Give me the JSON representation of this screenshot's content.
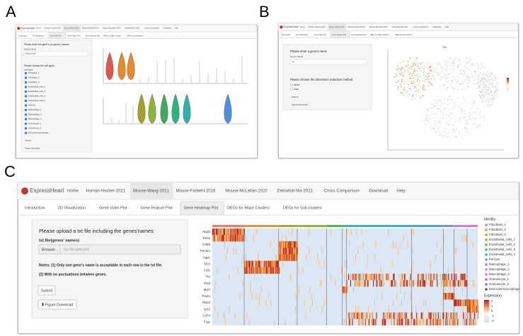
{
  "panel_labels": [
    "A",
    "B",
    "C"
  ],
  "app": {
    "brand": "ExpressHeart",
    "nav": [
      "Home",
      "Human-Hocker-2021",
      "Mouse-Wang-2021",
      "Mouse-Farbehi-2019",
      "Mouse-McLellan-2020",
      "Zebrafish-Ma-2021",
      "Cross Comparison",
      "Download",
      "Help"
    ],
    "tabs": [
      "Introduction",
      "2D Visualization",
      "Gene Violin Plot",
      "Gene Feature Plot",
      "Gene Heatmap Plot",
      "DEGs for Major Clusters",
      "DEGs for Sub-clusters"
    ]
  },
  "panel_a": {
    "prompt": "Please enter the gene's (or genes') names",
    "field_label": "Gene's Name",
    "field_value": "Nppa,Acta2",
    "cells_prompt": "Please choose the cell types",
    "cells_label": "Cell types",
    "submit": "Submit",
    "download": "Figure Download"
  },
  "panel_b": {
    "prompt": "Please enter a gene's name",
    "field_label": "Gene's Name",
    "field_value": "Ttn",
    "method_prompt": "Please choose the dimension reduction method",
    "methods": [
      "UMAP",
      "tSNE"
    ],
    "submit": "Submit",
    "download": "Figure Download",
    "plot_title": "Ttn"
  },
  "panel_c": {
    "form_title": "Please upload a txt file including the genes'names:",
    "file_label": "txt file(genes' names)",
    "browse": "Browse...",
    "no_file": "No file selected",
    "notes": [
      "Notes: (1) Only one gene's name is acceptable in each row in the txt file.",
      "(2) With no puctuations between genes."
    ],
    "submit": "Submit",
    "download": "Figure Download",
    "genes": [
      "Nppb",
      "Ensa",
      "Cd36",
      "Pecam",
      "Aqp1",
      "Dcn",
      "Col1",
      "Ttn",
      "Pisd",
      "Myl7",
      "Postn",
      "Rbp2",
      "Lyz2",
      "Cd74",
      "Fcgr"
    ],
    "legend_title": "Identity",
    "identities": [
      "Fibroblast_1",
      "Fibroblast_2",
      "Fibroblast_3",
      "Endothelial_cells_1",
      "Endothelial_cells_2",
      "Endothelial_cells_3",
      "Endothelial_cells_4",
      "Pericyte",
      "Macrophage_1",
      "Macrophage_2",
      "Macrophage_3",
      "Granulocyte_1",
      "Granulocyte_2",
      "Monocyte/macrophage"
    ],
    "expression_title": "Expression",
    "expression_ticks": [
      "2",
      "1",
      "0",
      "-1",
      "-2"
    ]
  }
}
